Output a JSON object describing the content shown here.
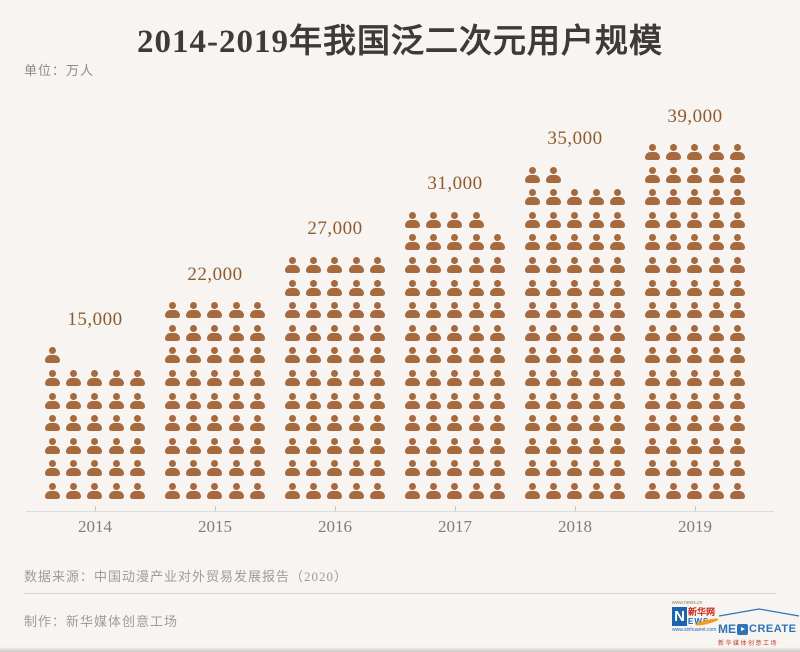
{
  "page": {
    "background": "#f8f4f1"
  },
  "header": {
    "title": "2014-2019年我国泛二次元用户规模",
    "unit_label": "单位：万人"
  },
  "chart_data": {
    "type": "bar",
    "subtype": "pictogram",
    "title": "2014-2019年我国泛二次元用户规模",
    "unit": "万人",
    "categories": [
      "2014",
      "2015",
      "2016",
      "2017",
      "2018",
      "2019"
    ],
    "values": [
      15000,
      22000,
      27000,
      31000,
      35000,
      39000
    ],
    "value_labels": [
      "15,000",
      "22,000",
      "27,000",
      "31,000",
      "35,000",
      "39,000"
    ],
    "icon_counts": [
      31,
      45,
      55,
      64,
      72,
      80
    ],
    "icons_per_row": 5,
    "icon": "person-icon",
    "icon_color": "#a76a3e",
    "value_label_color": "#8d5c2e",
    "axis_color": "#dcdcdc",
    "grid": false,
    "legend_position": "none"
  },
  "footer": {
    "source": "数据来源：中国动漫产业对外贸易发展报告（2020）",
    "credit": "制作：新华媒体创意工场"
  },
  "logos": {
    "xinhuanet": {
      "url_top": "www.news.cn",
      "n_letter": "N",
      "name_cn": "新华网",
      "ews": "EWS",
      "url_bottom": "www.xinhuanet.com"
    },
    "medcreate": {
      "me": "ME",
      "create": "CREATE",
      "subtitle": "新华媒体创意工场"
    }
  }
}
